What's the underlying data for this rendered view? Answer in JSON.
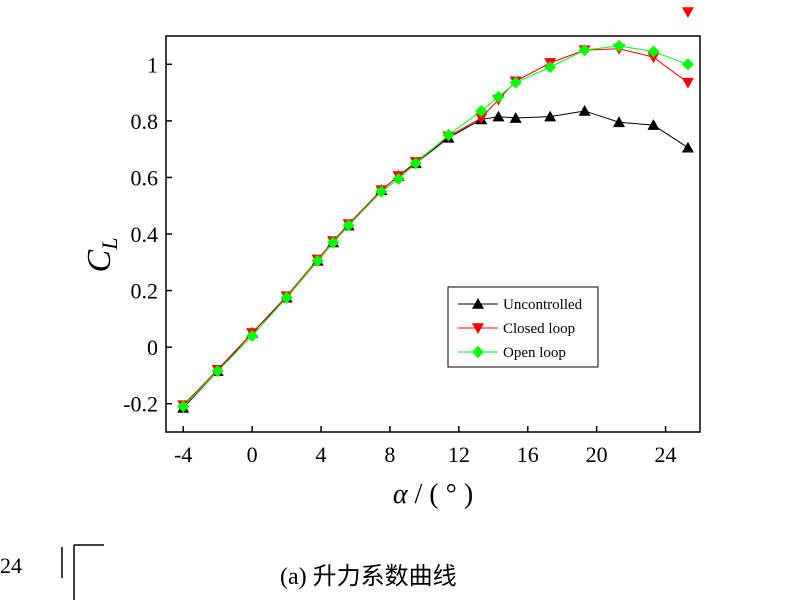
{
  "chart_data": {
    "type": "line",
    "xlabel": {
      "symbol": "α",
      "unit": " / ( ° )"
    },
    "ylabel": {
      "symbol": "C",
      "subscript": "L"
    },
    "xlim": [
      -5,
      26
    ],
    "ylim": [
      -0.3,
      1.1
    ],
    "xticks": [
      -4,
      0,
      4,
      8,
      12,
      16,
      20,
      24
    ],
    "yticks": [
      -0.2,
      0,
      0.2,
      0.4,
      0.6,
      0.8,
      1
    ],
    "ytick_labels": [
      "-0.2",
      "0",
      "0.2",
      "0.4",
      "0.6",
      "0.8",
      "1"
    ],
    "legend_position": "lower-right",
    "series": [
      {
        "name": "Uncontrolled",
        "color": "#000000",
        "marker": "triangle-up",
        "x": [
          -4,
          -2,
          0,
          2,
          3.8,
          4.7,
          5.6,
          7.5,
          8.5,
          9.5,
          11.4,
          13.3,
          14.3,
          15.3,
          17.3,
          19.3,
          21.3,
          23.3,
          25.3
        ],
        "y": [
          -0.215,
          -0.085,
          0.05,
          0.175,
          0.305,
          0.37,
          0.43,
          0.555,
          0.605,
          0.65,
          0.74,
          0.805,
          0.815,
          0.81,
          0.815,
          0.835,
          0.795,
          0.785,
          0.705
        ]
      },
      {
        "name": "Closed loop",
        "color": "#ff0000",
        "marker": "triangle-down",
        "x": [
          -4,
          -2,
          0,
          2,
          3.8,
          4.7,
          5.6,
          7.5,
          8.5,
          9.5,
          11.4,
          13.3,
          14.3,
          15.3,
          17.3,
          19.3,
          21.3,
          23.3,
          25.3
        ],
        "y": [
          -0.205,
          -0.08,
          0.05,
          0.18,
          0.31,
          0.375,
          0.435,
          0.555,
          0.605,
          0.655,
          0.745,
          0.81,
          0.875,
          0.94,
          1.005,
          1.05,
          1.055,
          1.025,
          0.935
        ]
      },
      {
        "name": "Open loop",
        "color": "#00ff00",
        "marker": "diamond",
        "x": [
          -4,
          -2,
          0,
          2,
          3.8,
          4.7,
          5.6,
          7.5,
          8.5,
          9.5,
          11.4,
          13.3,
          14.3,
          15.3,
          17.3,
          19.3,
          21.3,
          23.3,
          25.3
        ],
        "y": [
          -0.21,
          -0.085,
          0.04,
          0.175,
          0.305,
          0.37,
          0.43,
          0.55,
          0.595,
          0.65,
          0.75,
          0.835,
          0.885,
          0.935,
          0.99,
          1.05,
          1.065,
          1.045,
          1.0
        ]
      }
    ],
    "overflow_marker": {
      "series": "Closed loop",
      "x": 25.3,
      "y": 1.2
    }
  },
  "caption": "(a)    升力系数曲线",
  "stray_label": "24"
}
